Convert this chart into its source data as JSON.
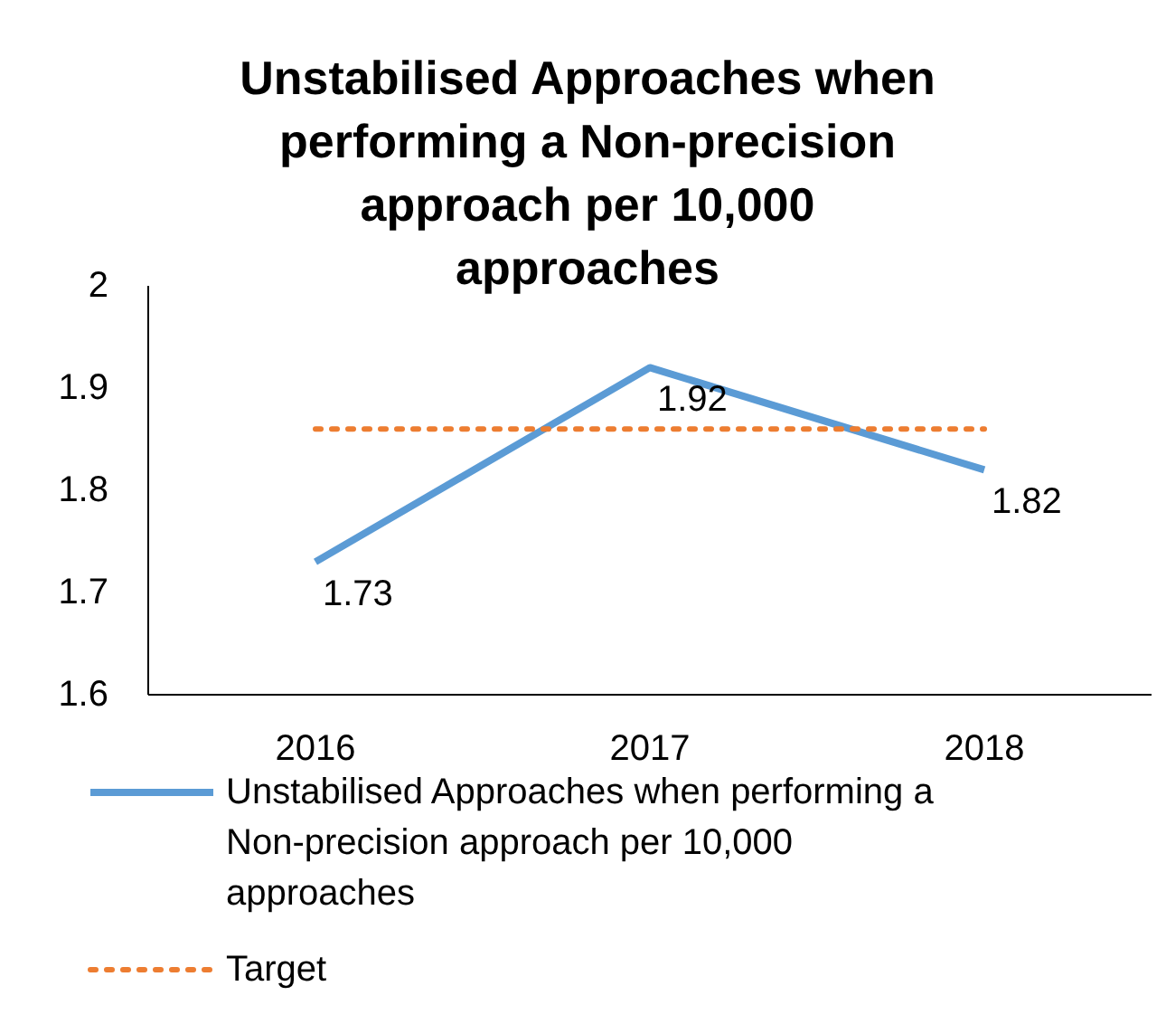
{
  "chart_data": {
    "type": "line",
    "title": "Unstabilised Approaches when performing a Non-precision approach per 10,000 approaches",
    "categories": [
      "2016",
      "2017",
      "2018"
    ],
    "series": [
      {
        "name": "Unstabilised Approaches when performing a Non-precision approach per 10,000 approaches",
        "color": "#5b9bd5",
        "values": [
          1.73,
          1.92,
          1.82
        ],
        "value_labels": [
          "1.73",
          "1.92",
          "1.82"
        ],
        "line_style": "solid"
      },
      {
        "name": "Target",
        "color": "#ed7d31",
        "values": [
          1.86,
          1.86,
          1.86
        ],
        "line_style": "dotted"
      }
    ],
    "ylim": [
      1.6,
      2
    ],
    "yticks": [
      1.6,
      1.7,
      1.8,
      1.9,
      2
    ],
    "grid": false,
    "legend": "bottom",
    "marker": "none"
  }
}
